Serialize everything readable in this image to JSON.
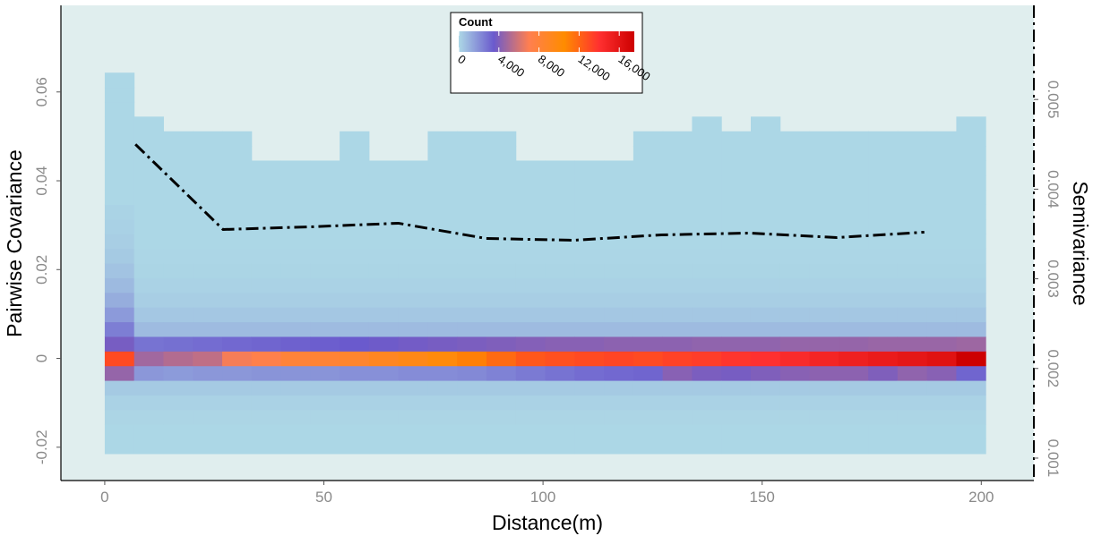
{
  "chart_data": {
    "type": "heatmap",
    "xlabel": "Distance(m)",
    "ylabel_left": "Pairwise Covariance",
    "ylabel_right": "Semivariance",
    "x_ticks": [
      0,
      50,
      100,
      150,
      200
    ],
    "y_ticks_left": [
      -0.02,
      0,
      0.02,
      0.04,
      0.06
    ],
    "y_tick_labels_left": [
      "-0.02",
      "0",
      "0.02",
      "0.04",
      "0.06"
    ],
    "y_ticks_right": [
      0.001,
      0.002,
      0.003,
      0.004,
      0.005
    ],
    "y_tick_labels_right": [
      "0.001",
      "0.002",
      "0.003",
      "0.004",
      "0.005"
    ],
    "xlim": [
      -10,
      212
    ],
    "ylim_left": [
      -0.0275,
      0.0795
    ],
    "ylim_right": [
      0.00075,
      0.00605
    ],
    "background_color": "#e0eeee",
    "legend": {
      "title": "Count",
      "position": "top-center",
      "ticks": [
        0,
        4000,
        8000,
        12000,
        16000
      ],
      "tick_labels": [
        "0",
        "4,000",
        "8,000",
        "12,000",
        "16,000"
      ],
      "max": 17500,
      "colors": [
        "#add8e6",
        "#6a5acd",
        "#ff7f50",
        "#ff8c00",
        "#ff3030",
        "#cd0000"
      ]
    },
    "heatmap": {
      "x_bin_width": 6.7,
      "x_bin_starts_at": 0,
      "y_bin_width": 0.0033,
      "y_bin_center_at": 0,
      "x_bin_centers": [
        3.35,
        10.05,
        16.75,
        23.45,
        30.15,
        36.85,
        43.55,
        50.25,
        56.95,
        63.65,
        70.35,
        77.05,
        83.75,
        90.45,
        97.15,
        103.85,
        110.55,
        117.25,
        123.95,
        130.65,
        137.35,
        144.05,
        150.75,
        157.45,
        164.15,
        170.85,
        177.55,
        184.25,
        190.95,
        197.65
      ],
      "band_counts": {
        "y_0_000": [
          13000,
          4800,
          5200,
          5500,
          6800,
          7200,
          8000,
          8200,
          8500,
          9000,
          9500,
          10000,
          11000,
          11800,
          12500,
          12800,
          13000,
          13200,
          13000,
          13300,
          13500,
          13800,
          14000,
          14400,
          14800,
          15200,
          15500,
          15800,
          16200,
          17500
        ],
        "y_0_0033": [
          3800,
          2800,
          2900,
          3000,
          3100,
          3200,
          3300,
          3400,
          3500,
          3600,
          3700,
          3800,
          3900,
          4000,
          4100,
          4200,
          4200,
          4300,
          4300,
          4300,
          4400,
          4400,
          4400,
          4500,
          4500,
          4500,
          4600,
          4600,
          4600,
          4700
        ],
        "y_m0_0033": [
          4500,
          1800,
          1700,
          1800,
          1800,
          1900,
          1900,
          1900,
          2000,
          2000,
          2100,
          2100,
          2200,
          2400,
          2600,
          2800,
          3000,
          3100,
          3200,
          4200,
          3900,
          3800,
          4000,
          4200,
          4300,
          4300,
          4000,
          4400,
          4200,
          3200
        ]
      }
    },
    "line": {
      "style": "dash-dot",
      "axis": "right",
      "x": [
        7,
        27,
        47,
        67,
        87,
        107,
        127,
        147,
        167,
        187
      ],
      "y": [
        0.0045,
        0.00355,
        0.00358,
        0.00362,
        0.00345,
        0.00343,
        0.00349,
        0.00351,
        0.00346,
        0.00352
      ]
    }
  }
}
